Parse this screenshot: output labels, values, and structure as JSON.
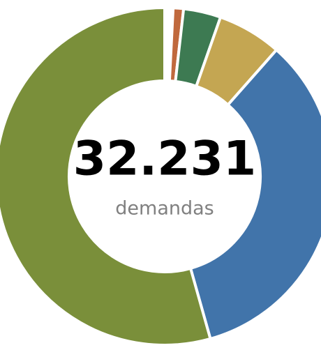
{
  "chart_data": {
    "type": "donut",
    "center_text": "32.231",
    "center_caption": "demandas",
    "categories": [
      null,
      null,
      null,
      null,
      null
    ],
    "values": [
      1,
      3.6,
      6.2,
      34.4,
      54.8
    ],
    "colors": [
      "#c0693d",
      "#3d7a52",
      "#c4a652",
      "#4174aa",
      "#7a8f3a"
    ]
  }
}
